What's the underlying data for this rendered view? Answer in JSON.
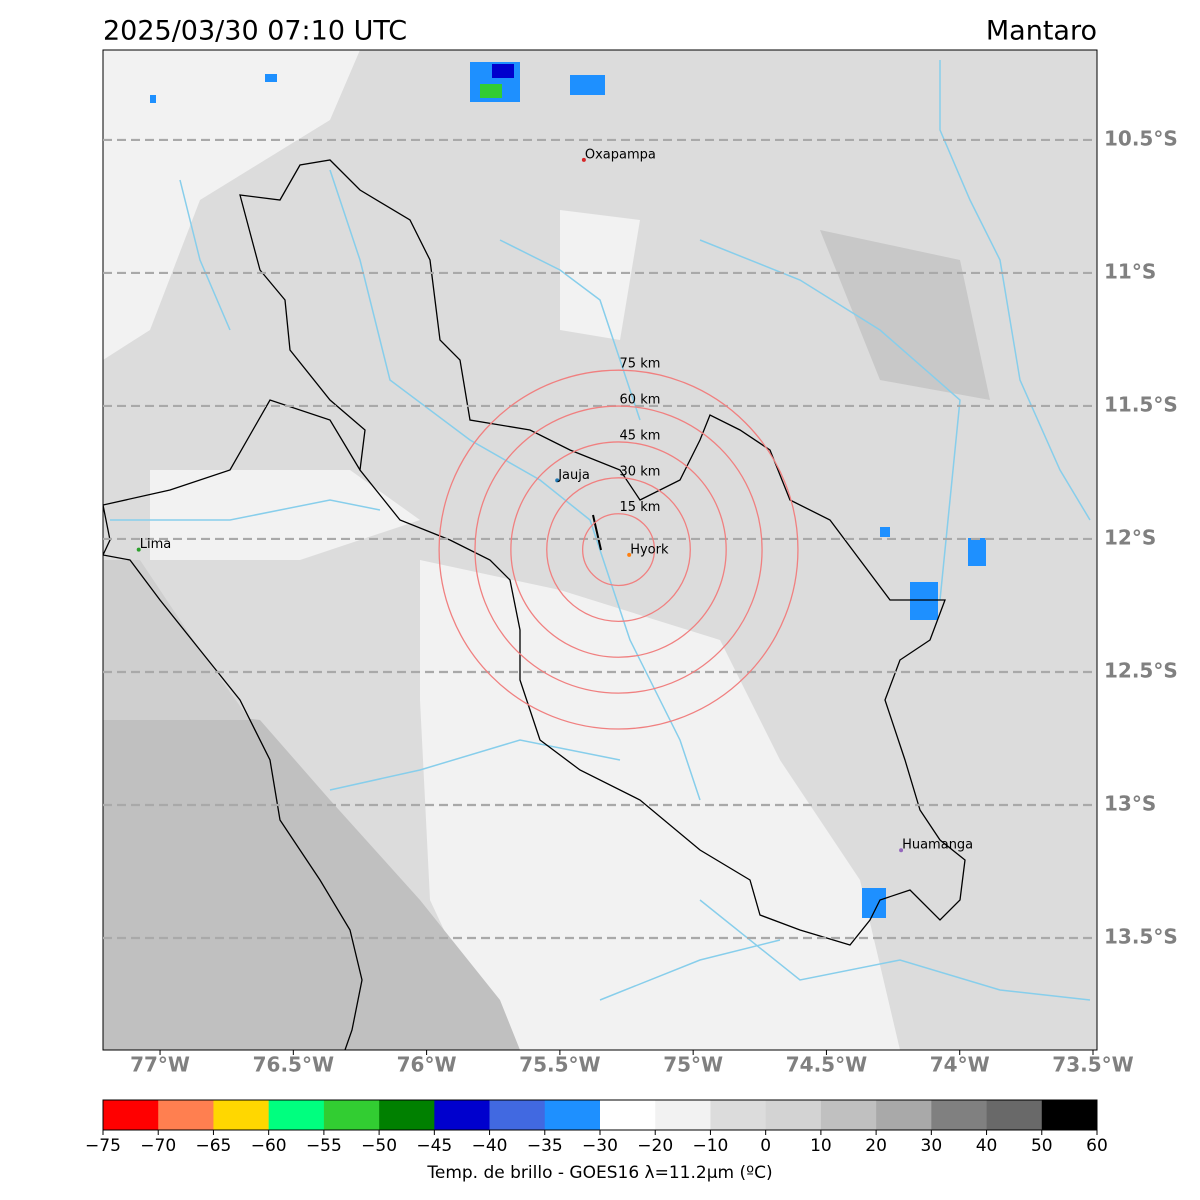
{
  "title": "2025/03/30 07:10 UTC",
  "region": "Mantaro",
  "lonlim": [
    -77.214,
    -73.485
  ],
  "latlim": [
    -13.921,
    -10.162
  ],
  "lon_ticks": [
    {
      "value": -77,
      "label": "77°W"
    },
    {
      "value": -76.5,
      "label": "76.5°W"
    },
    {
      "value": -76,
      "label": "76°W"
    },
    {
      "value": -75.5,
      "label": "75.5°W"
    },
    {
      "value": -75,
      "label": "75°W"
    },
    {
      "value": -74.5,
      "label": "74.5°W"
    },
    {
      "value": -74,
      "label": "74°W"
    },
    {
      "value": -73.5,
      "label": "73.5°W"
    }
  ],
  "lat_ticks": [
    {
      "value": -10.5,
      "label": "10.5°S"
    },
    {
      "value": -11,
      "label": "11°S"
    },
    {
      "value": -11.5,
      "label": "11.5°S"
    },
    {
      "value": -12,
      "label": "12°S"
    },
    {
      "value": -12.5,
      "label": "12.5°S"
    },
    {
      "value": -13,
      "label": "13°S"
    },
    {
      "value": -13.5,
      "label": "13.5°S"
    }
  ],
  "lat_grid": true,
  "cities": [
    {
      "name": "Oxapampa",
      "lon": -75.41,
      "lat": -10.575,
      "color": "#d62728"
    },
    {
      "name": "Jauja",
      "lon": -75.51,
      "lat": -11.78,
      "color": "#1f77b4"
    },
    {
      "name": "Hyork",
      "lon": -75.24,
      "lat": -12.06,
      "color": "#ff7f0e"
    },
    {
      "name": "Lima",
      "lon": -77.08,
      "lat": -12.04,
      "color": "#2ca02c"
    },
    {
      "name": "Huamanga",
      "lon": -74.22,
      "lat": -13.17,
      "color": "#9467bd"
    }
  ],
  "ring_center": {
    "lon": -75.28,
    "lat": -12.04
  },
  "rings": [
    {
      "value": 15,
      "label": "15 km"
    },
    {
      "value": 30,
      "label": "30 km"
    },
    {
      "value": 45,
      "label": "45 km"
    },
    {
      "value": 60,
      "label": "60 km"
    },
    {
      "value": 75,
      "label": "75 km"
    }
  ],
  "ring_color": "#f08080",
  "colorbar": {
    "ticks": [
      {
        "value": -75,
        "label": "−75"
      },
      {
        "value": -70,
        "label": "−70"
      },
      {
        "value": -65,
        "label": "−65"
      },
      {
        "value": -60,
        "label": "−60"
      },
      {
        "value": -55,
        "label": "−55"
      },
      {
        "value": -50,
        "label": "−50"
      },
      {
        "value": -45,
        "label": "−45"
      },
      {
        "value": -40,
        "label": "−40"
      },
      {
        "value": -35,
        "label": "−35"
      },
      {
        "value": -30,
        "label": "−30"
      },
      {
        "value": -20,
        "label": "−20"
      },
      {
        "value": -10,
        "label": "−10"
      },
      0,
      10,
      20,
      30,
      40,
      50,
      60
    ],
    "colors": [
      "#ff0000",
      "#ff7f50",
      "#ffd700",
      "#00ff7f",
      "#32cd32",
      "#008000",
      "#0000cd",
      "#4169e1",
      "#1e90ff",
      "#ffffff",
      "#f2f2f2",
      "#dcdcdc",
      "#d3d3d3",
      "#c0c0c0",
      "#a9a9a9",
      "#808080",
      "#696969",
      "#000000"
    ],
    "label": "Temp. de brillo - GOES16 λ=11.2μm (ºC)"
  }
}
